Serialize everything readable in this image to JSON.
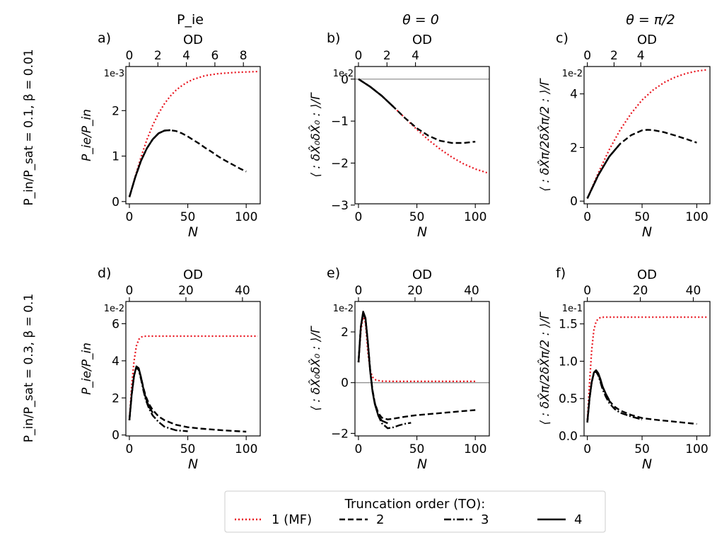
{
  "column_titles": [
    "P_ie",
    "θ = 0",
    "θ = π/2"
  ],
  "row_labels": [
    "P_in/P_sat = 0.1, β = 0.01",
    "P_in/P_sat = 0.3, β = 0.1"
  ],
  "legend": {
    "title": "Truncation order (TO):",
    "placement": "bottom-center",
    "entries": [
      {
        "label": "1 (MF)",
        "color": "#e8121c",
        "style": "dotted"
      },
      {
        "label": "2",
        "color": "#000000",
        "style": "dashed"
      },
      {
        "label": "3",
        "color": "#000000",
        "style": "dashdot"
      },
      {
        "label": "4",
        "color": "#000000",
        "style": "solid"
      }
    ]
  },
  "chart_data": [
    {
      "panel": "a)",
      "type": "line",
      "xlabel": "N",
      "top_xlabel": "OD",
      "ylabel": "P_ie/P_in",
      "y_offset": "1e-3",
      "xlim": [
        -3,
        112
      ],
      "ylim": [
        -0.05,
        2.97
      ],
      "xticks": [
        0,
        50,
        100
      ],
      "yticks": [
        0,
        1,
        2
      ],
      "top_ticks": [
        {
          "pos": 0,
          "label": "0"
        },
        {
          "pos": 24.4,
          "label": "2"
        },
        {
          "pos": 48.8,
          "label": "4"
        },
        {
          "pos": 73.2,
          "label": "6"
        },
        {
          "pos": 97.6,
          "label": "8"
        }
      ],
      "hline_zero": false,
      "series": [
        {
          "name": "1 (MF)",
          "x": [
            0,
            5,
            10,
            15,
            20,
            25,
            30,
            35,
            40,
            45,
            50,
            55,
            60,
            65,
            70,
            75,
            80,
            85,
            90,
            95,
            100,
            105,
            110
          ],
          "y": [
            0.1,
            0.55,
            0.98,
            1.36,
            1.68,
            1.94,
            2.15,
            2.32,
            2.45,
            2.55,
            2.63,
            2.69,
            2.73,
            2.77,
            2.79,
            2.81,
            2.82,
            2.83,
            2.84,
            2.845,
            2.85,
            2.855,
            2.86
          ]
        },
        {
          "name": "2",
          "x": [
            0,
            5,
            10,
            15,
            20,
            25,
            30,
            35,
            40,
            45,
            50,
            55,
            60,
            65,
            70,
            75,
            80,
            85,
            90,
            95,
            100
          ],
          "y": [
            0.1,
            0.53,
            0.9,
            1.17,
            1.37,
            1.5,
            1.56,
            1.57,
            1.55,
            1.5,
            1.43,
            1.35,
            1.27,
            1.18,
            1.1,
            1.01,
            0.93,
            0.86,
            0.79,
            0.72,
            0.66
          ]
        },
        {
          "name": "3",
          "x": [
            0,
            5,
            10,
            15,
            20,
            25,
            30,
            35
          ],
          "y": [
            0.1,
            0.53,
            0.9,
            1.17,
            1.37,
            1.5,
            1.56,
            1.57
          ]
        },
        {
          "name": "4",
          "x": [
            0,
            5,
            10,
            15,
            20,
            25,
            30,
            35
          ],
          "y": [
            0.1,
            0.53,
            0.9,
            1.17,
            1.37,
            1.5,
            1.56,
            1.57
          ]
        }
      ]
    },
    {
      "panel": "b)",
      "type": "line",
      "xlabel": "N",
      "top_xlabel": "OD",
      "ylabel": "⟨ : δX̂₀δX̂₀ : ⟩/Γ",
      "y_offset": "1e-2",
      "xlim": [
        -3,
        112
      ],
      "ylim": [
        -2.97,
        0.3
      ],
      "xticks": [
        0,
        50,
        100
      ],
      "yticks": [
        -3,
        -2,
        -1,
        0
      ],
      "top_ticks": [
        {
          "pos": 0,
          "label": "0"
        },
        {
          "pos": 24.4,
          "label": "2"
        },
        {
          "pos": 48.8,
          "label": "4"
        }
      ],
      "hline_zero": true,
      "series": [
        {
          "name": "1 (MF)",
          "x": [
            0,
            10,
            20,
            30,
            40,
            50,
            60,
            70,
            80,
            90,
            100,
            110
          ],
          "y": [
            0,
            -0.18,
            -0.4,
            -0.66,
            -0.93,
            -1.2,
            -1.45,
            -1.67,
            -1.86,
            -2.02,
            -2.14,
            -2.23
          ]
        },
        {
          "name": "2",
          "x": [
            0,
            10,
            20,
            30,
            40,
            50,
            60,
            70,
            80,
            90,
            100
          ],
          "y": [
            0,
            -0.18,
            -0.4,
            -0.66,
            -0.93,
            -1.17,
            -1.35,
            -1.47,
            -1.52,
            -1.52,
            -1.49
          ]
        },
        {
          "name": "3",
          "x": [
            0,
            10,
            20,
            30
          ],
          "y": [
            0,
            -0.18,
            -0.4,
            -0.66
          ]
        },
        {
          "name": "4",
          "x": [
            0,
            10,
            20,
            30
          ],
          "y": [
            0,
            -0.18,
            -0.4,
            -0.66
          ]
        }
      ]
    },
    {
      "panel": "c)",
      "type": "line",
      "xlabel": "N",
      "top_xlabel": "OD",
      "ylabel": "⟨ : δX̂π/2δX̂π/2 : ⟩/Γ",
      "y_offset": "1e-2",
      "xlim": [
        -3,
        112
      ],
      "ylim": [
        -0.1,
        5.02
      ],
      "xticks": [
        0,
        50,
        100
      ],
      "yticks": [
        0,
        2,
        4
      ],
      "top_ticks": [
        {
          "pos": 0,
          "label": "0"
        },
        {
          "pos": 24.4,
          "label": "2"
        },
        {
          "pos": 48.8,
          "label": "4"
        }
      ],
      "hline_zero": false,
      "series": [
        {
          "name": "1 (MF)",
          "x": [
            0,
            10,
            20,
            30,
            40,
            50,
            60,
            70,
            80,
            90,
            100,
            110
          ],
          "y": [
            0.1,
            1.05,
            1.92,
            2.66,
            3.27,
            3.77,
            4.14,
            4.42,
            4.62,
            4.76,
            4.85,
            4.9
          ]
        },
        {
          "name": "2",
          "x": [
            0,
            10,
            20,
            30,
            40,
            50,
            55,
            60,
            70,
            80,
            90,
            100
          ],
          "y": [
            0.1,
            0.97,
            1.66,
            2.14,
            2.46,
            2.64,
            2.66,
            2.65,
            2.57,
            2.45,
            2.32,
            2.18
          ]
        },
        {
          "name": "3",
          "x": [
            0,
            10,
            20,
            30
          ],
          "y": [
            0.1,
            0.97,
            1.66,
            2.14
          ]
        },
        {
          "name": "4",
          "x": [
            0,
            10,
            20,
            30
          ],
          "y": [
            0.1,
            0.97,
            1.66,
            2.14
          ]
        }
      ]
    },
    {
      "panel": "d)",
      "type": "line",
      "xlabel": "N",
      "top_xlabel": "OD",
      "ylabel": "P_ie/P_in",
      "y_offset": "1e-2",
      "xlim": [
        -3,
        112
      ],
      "ylim": [
        -0.05,
        7.2
      ],
      "xticks": [
        0,
        50,
        100
      ],
      "yticks": [
        0,
        2,
        4,
        6
      ],
      "top_ticks": [
        {
          "pos": 0,
          "label": "0"
        },
        {
          "pos": 48.4,
          "label": "20"
        },
        {
          "pos": 96.8,
          "label": "40"
        }
      ],
      "hline_zero": false,
      "series": [
        {
          "name": "1 (MF)",
          "x": [
            0,
            2,
            4,
            6,
            8,
            10,
            12,
            15,
            20,
            30,
            50,
            70,
            100,
            110
          ],
          "y": [
            0.8,
            2.7,
            4.0,
            4.8,
            5.15,
            5.28,
            5.32,
            5.33,
            5.33,
            5.33,
            5.33,
            5.33,
            5.33,
            5.33
          ]
        },
        {
          "name": "2",
          "x": [
            0,
            2,
            4,
            6,
            8,
            10,
            12,
            14,
            17,
            20,
            25,
            30,
            40,
            50,
            60,
            80,
            100
          ],
          "y": [
            0.8,
            2.2,
            3.2,
            3.65,
            3.55,
            3.1,
            2.55,
            2.1,
            1.65,
            1.35,
            1.0,
            0.8,
            0.55,
            0.42,
            0.35,
            0.25,
            0.18
          ]
        },
        {
          "name": "3",
          "x": [
            0,
            2,
            4,
            6,
            8,
            10,
            12,
            14,
            17,
            20,
            25,
            30,
            40,
            50
          ],
          "y": [
            0.8,
            2.2,
            3.2,
            3.65,
            3.5,
            3.0,
            2.4,
            1.9,
            1.4,
            1.05,
            0.7,
            0.45,
            0.25,
            0.2
          ]
        },
        {
          "name": "4",
          "x": [
            0,
            2,
            4,
            6,
            8,
            10,
            12,
            14,
            17,
            20
          ],
          "y": [
            0.8,
            2.2,
            3.2,
            3.7,
            3.6,
            3.1,
            2.5,
            2.0,
            1.5,
            1.2
          ]
        }
      ]
    },
    {
      "panel": "e)",
      "type": "line",
      "xlabel": "N",
      "top_xlabel": "OD",
      "ylabel": "⟨ : δX̂₀δX̂₀ : ⟩/Γ",
      "y_offset": "1e-2",
      "xlim": [
        -3,
        112
      ],
      "ylim": [
        -2.1,
        3.2
      ],
      "xticks": [
        0,
        50,
        100
      ],
      "yticks": [
        -2,
        0,
        2
      ],
      "top_ticks": [
        {
          "pos": 0,
          "label": "0"
        },
        {
          "pos": 48.4,
          "label": "20"
        },
        {
          "pos": 96.8,
          "label": "40"
        }
      ],
      "hline_zero": true,
      "series": [
        {
          "name": "1 (MF)",
          "x": [
            0,
            2,
            4,
            6,
            8,
            10,
            12,
            15,
            20,
            30,
            50,
            70,
            100
          ],
          "y": [
            0.8,
            2.0,
            2.65,
            2.35,
            1.2,
            0.5,
            0.22,
            0.1,
            0.06,
            0.05,
            0.05,
            0.05,
            0.05
          ]
        },
        {
          "name": "2",
          "x": [
            0,
            2,
            4,
            6,
            8,
            10,
            12,
            14,
            17,
            20,
            25,
            30,
            35,
            40,
            50,
            60,
            80,
            100
          ],
          "y": [
            0.8,
            2.2,
            2.75,
            2.5,
            1.6,
            0.5,
            -0.3,
            -0.8,
            -1.2,
            -1.38,
            -1.45,
            -1.42,
            -1.38,
            -1.34,
            -1.28,
            -1.24,
            -1.16,
            -1.08
          ]
        },
        {
          "name": "3",
          "x": [
            0,
            2,
            4,
            6,
            8,
            10,
            12,
            14,
            17,
            20,
            25,
            30,
            35,
            40,
            45
          ],
          "y": [
            0.8,
            2.2,
            2.75,
            2.5,
            1.6,
            0.5,
            -0.3,
            -0.8,
            -1.3,
            -1.6,
            -1.8,
            -1.76,
            -1.68,
            -1.62,
            -1.58
          ]
        },
        {
          "name": "4",
          "x": [
            0,
            2,
            4,
            6,
            8,
            10,
            12,
            14,
            17,
            20,
            25
          ],
          "y": [
            0.8,
            2.2,
            2.8,
            2.55,
            1.6,
            0.45,
            -0.35,
            -0.85,
            -1.3,
            -1.5,
            -1.6
          ]
        }
      ]
    },
    {
      "panel": "f)",
      "type": "line",
      "xlabel": "N",
      "top_xlabel": "OD",
      "ylabel": "⟨ : δX̂π/2δX̂π/2 : ⟩/Γ",
      "y_offset": "1e-1",
      "xlim": [
        -3,
        112
      ],
      "ylim": [
        0,
        1.8
      ],
      "xticks": [
        0,
        50,
        100
      ],
      "yticks": [
        0.0,
        0.5,
        1.0,
        1.5
      ],
      "top_ticks": [
        {
          "pos": 0,
          "label": "0"
        },
        {
          "pos": 48.4,
          "label": "20"
        },
        {
          "pos": 96.8,
          "label": "40"
        }
      ],
      "hline_zero": false,
      "series": [
        {
          "name": "1 (MF)",
          "x": [
            0,
            2,
            4,
            6,
            8,
            10,
            12,
            15,
            20,
            30,
            50,
            70,
            100,
            110
          ],
          "y": [
            0.18,
            0.7,
            1.15,
            1.42,
            1.53,
            1.57,
            1.585,
            1.59,
            1.59,
            1.59,
            1.59,
            1.59,
            1.59,
            1.59
          ]
        },
        {
          "name": "2",
          "x": [
            0,
            2,
            4,
            6,
            8,
            10,
            12,
            14,
            17,
            20,
            25,
            30,
            40,
            50,
            60,
            80,
            100
          ],
          "y": [
            0.18,
            0.5,
            0.72,
            0.84,
            0.87,
            0.83,
            0.74,
            0.65,
            0.55,
            0.47,
            0.39,
            0.34,
            0.28,
            0.24,
            0.22,
            0.19,
            0.16
          ]
        },
        {
          "name": "3",
          "x": [
            0,
            2,
            4,
            6,
            8,
            10,
            12,
            14,
            17,
            20,
            25,
            30,
            40,
            50
          ],
          "y": [
            0.18,
            0.5,
            0.72,
            0.84,
            0.86,
            0.81,
            0.72,
            0.62,
            0.52,
            0.44,
            0.36,
            0.31,
            0.26,
            0.22
          ]
        },
        {
          "name": "4",
          "x": [
            0,
            2,
            4,
            6,
            8,
            10,
            12,
            14,
            17,
            20
          ],
          "y": [
            0.18,
            0.5,
            0.72,
            0.85,
            0.88,
            0.84,
            0.76,
            0.66,
            0.56,
            0.48
          ]
        }
      ]
    }
  ]
}
